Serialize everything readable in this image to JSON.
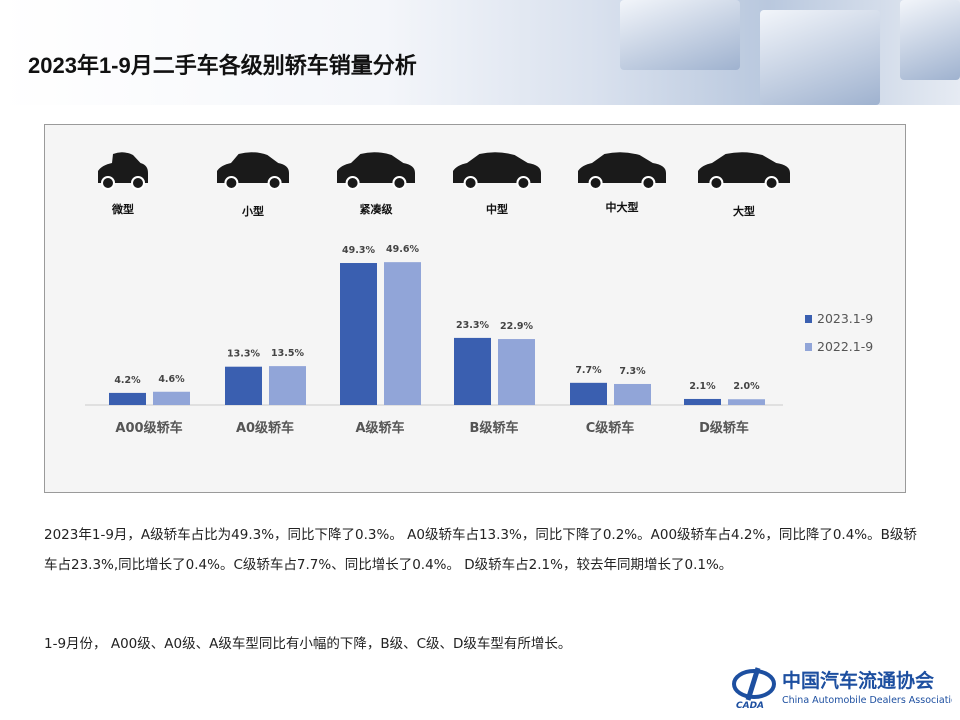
{
  "title": "2023年1-9月二手车各级别轿车销量分析",
  "car_types": [
    "微型",
    "小型",
    "紧凑级",
    "中型",
    "中大型",
    "大型"
  ],
  "chart_data": {
    "type": "bar",
    "categories": [
      "A00级轿车",
      "A0级轿车",
      "A级轿车",
      "B级轿车",
      "C级轿车",
      "D级轿车"
    ],
    "series": [
      {
        "name": "2023.1-9",
        "values": [
          4.2,
          13.3,
          49.3,
          23.3,
          7.7,
          2.1
        ],
        "labels": [
          "4.2%",
          "13.3%",
          "49.3%",
          "23.3%",
          "7.7%",
          "2.1%"
        ],
        "color": "#3a5fb0"
      },
      {
        "name": "2022.1-9",
        "values": [
          4.6,
          13.5,
          49.6,
          22.9,
          7.3,
          2.0
        ],
        "labels": [
          "4.6%",
          "13.5%",
          "49.6%",
          "22.9%",
          "7.3%",
          "2.0%"
        ],
        "color": "#91a5d8"
      }
    ],
    "legend": "right",
    "grid": false
  },
  "paragraph": "2023年1-9月，A级轿车占比为49.3%，同比下降了0.3%。  A0级轿车占13.3%，同比下降了0.2%。A00级轿车占4.2%，同比降了0.4%。B级轿车占23.3%,同比增长了0.4%。C级轿车占7.7%、同比增长了0.4%。  D级轿车占2.1%，较去年同期增长了0.1%。",
  "paragraph2": "1-9月份， A00级、A0级、A级车型同比有小幅的下降，B级、C级、D级车型有所增长。",
  "logo": {
    "cn": "中国汽车流通协会",
    "en": "China Automobile Dealers Association",
    "abbr": "CADA"
  }
}
